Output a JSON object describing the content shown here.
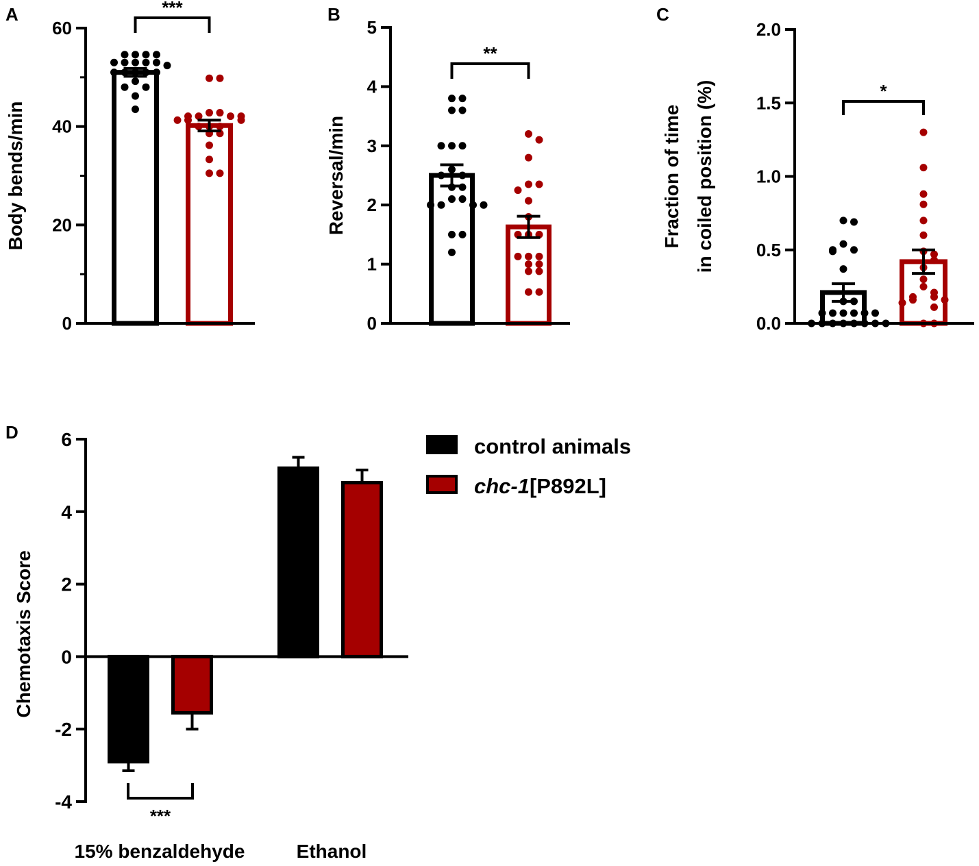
{
  "colors": {
    "control": "#000000",
    "mutant": "#a50000"
  },
  "chart_data": [
    {
      "panel": "A",
      "type": "bar",
      "ylabel": "Body bends/min",
      "ylim": [
        0,
        60
      ],
      "yticks": [
        "0",
        "20",
        "40",
        "60"
      ],
      "ytick_values": [
        0,
        20,
        40,
        60
      ],
      "minor_ticks": [
        10,
        30,
        50
      ],
      "significance": "***",
      "series": [
        {
          "name": "control animals",
          "mean": 51,
          "sem": 0.8,
          "points": [
            54.6,
            54.6,
            54.6,
            54.6,
            53,
            53,
            53,
            53,
            53,
            52.4,
            51,
            51,
            51,
            51,
            51,
            49.2,
            48,
            48,
            46.2,
            43.5
          ]
        },
        {
          "name": "chc-1[P892L]",
          "mean": 40.2,
          "sem": 1.1,
          "points": [
            49.8,
            49.8,
            42.8,
            42.8,
            42.1,
            42.1,
            42.1,
            42.1,
            41.3,
            41.3,
            41.3,
            40,
            40,
            40,
            38.6,
            38.6,
            36.2,
            33.3,
            30.5,
            30.5
          ]
        }
      ]
    },
    {
      "panel": "B",
      "type": "bar",
      "ylabel": "Reversal/min",
      "ylim": [
        0,
        5
      ],
      "yticks": [
        "0",
        "1",
        "2",
        "3",
        "4",
        "5"
      ],
      "ytick_values": [
        0,
        1,
        2,
        3,
        4,
        5
      ],
      "minor_ticks": [],
      "significance": "**",
      "series": [
        {
          "name": "control animals",
          "mean": 2.5,
          "sem": 0.18,
          "points": [
            3.8,
            3.8,
            3.6,
            3.6,
            3.0,
            3.0,
            3.0,
            2.6,
            2.5,
            2.5,
            2.3,
            2.3,
            2.1,
            2.1,
            2.0,
            2.0,
            2.0,
            2.0,
            1.5,
            1.5,
            1.2
          ]
        },
        {
          "name": "chc-1[P892L]",
          "mean": 1.63,
          "sem": 0.18,
          "points": [
            3.2,
            3.1,
            2.8,
            2.35,
            2.35,
            2.25,
            2.07,
            1.8,
            1.5,
            1.5,
            1.5,
            1.13,
            1.13,
            1.13,
            1.0,
            1.0,
            0.88,
            0.88,
            0.53,
            0.53
          ]
        }
      ]
    },
    {
      "panel": "C",
      "type": "bar",
      "ylabel": [
        "Fraction of time",
        "in coiled position (%)"
      ],
      "ylim": [
        0,
        2.0
      ],
      "yticks": [
        "0.0",
        "0.5",
        "1.0",
        "1.5",
        "2.0"
      ],
      "ytick_values": [
        0,
        0.5,
        1.0,
        1.5,
        2.0
      ],
      "minor_ticks": [],
      "significance": "*",
      "series": [
        {
          "name": "control animals",
          "mean": 0.21,
          "sem": 0.06,
          "points": [
            0.7,
            0.69,
            0.54,
            0.5,
            0.5,
            0.49,
            0.37,
            0.15,
            0.15,
            0.07,
            0.07,
            0.07,
            0.07,
            0.07,
            0.07,
            0,
            0,
            0,
            0,
            0,
            0,
            0,
            0
          ]
        },
        {
          "name": "chc-1[P892L]",
          "mean": 0.42,
          "sem": 0.08,
          "points": [
            1.3,
            1.06,
            0.88,
            0.81,
            0.7,
            0.6,
            0.49,
            0.47,
            0.43,
            0.38,
            0.3,
            0.25,
            0.21,
            0.18,
            0.18,
            0.16,
            0.16,
            0.14,
            0.11,
            0,
            0
          ]
        }
      ]
    },
    {
      "panel": "D",
      "type": "bar",
      "ylabel": "Chemotaxis Score",
      "ylim": [
        -4,
        6
      ],
      "yticks": [
        "-4",
        "-2",
        "0",
        "2",
        "4",
        "6"
      ],
      "ytick_values": [
        -4,
        -2,
        0,
        2,
        4,
        6
      ],
      "categories": [
        "15% benzaldehyde",
        "Ethanol"
      ],
      "significance": {
        "category": "15% benzaldehyde",
        "label": "***"
      },
      "legend": {
        "placement": "top-right",
        "entries": [
          {
            "name": "control animals",
            "italic": "",
            "rest": "control animals"
          },
          {
            "name": "chc-1[P892L]",
            "italic": "chc-1",
            "rest": "[P892L]"
          }
        ]
      },
      "series": [
        {
          "name": "control animals",
          "values": [
            -2.9,
            5.2
          ],
          "errors": [
            0.25,
            0.3
          ]
        },
        {
          "name": "chc-1[P892L]",
          "values": [
            -1.55,
            4.8
          ],
          "errors": [
            0.45,
            0.35
          ]
        }
      ]
    }
  ]
}
